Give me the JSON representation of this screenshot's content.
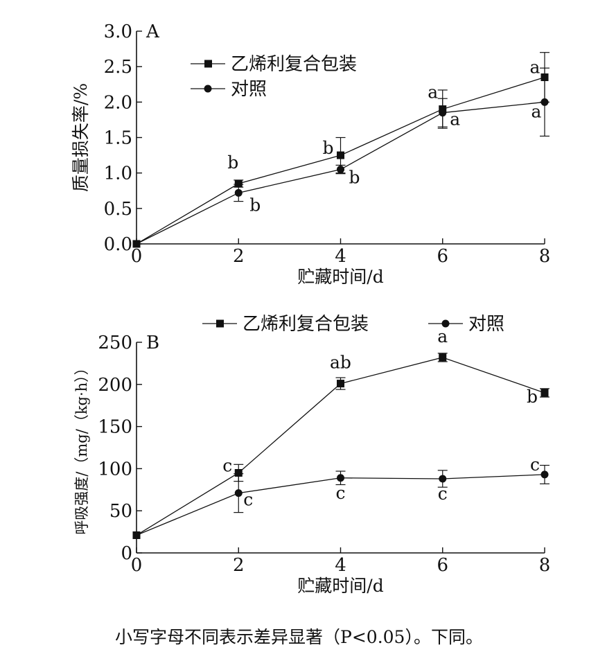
{
  "chart_data": [
    {
      "type": "line",
      "panel_label": "A",
      "xlabel": "贮藏时间/d",
      "ylabel": "质量损失率/%",
      "x": [
        0,
        2,
        4,
        6,
        8
      ],
      "xlim": [
        0,
        8
      ],
      "ylim": [
        0,
        3.0
      ],
      "yticks": [
        "0.0",
        "0.5",
        "1.0",
        "1.5",
        "2.0",
        "2.5",
        "3.0"
      ],
      "xticks": [
        "0",
        "2",
        "4",
        "6",
        "8"
      ],
      "legend_position": "top-left",
      "series": [
        {
          "name": "乙烯利复合包装",
          "marker": "square",
          "values": [
            0.0,
            0.85,
            1.25,
            1.9,
            2.35
          ],
          "errors": [
            0.0,
            0.05,
            0.25,
            0.27,
            0.35
          ],
          "letters": [
            "",
            "b",
            "b",
            "a",
            "a"
          ]
        },
        {
          "name": "对照",
          "marker": "circle",
          "values": [
            0.0,
            0.72,
            1.05,
            1.85,
            2.0
          ],
          "errors": [
            0.0,
            0.12,
            0.06,
            0.2,
            0.48
          ],
          "letters": [
            "",
            "b",
            "b",
            "a",
            "a"
          ]
        }
      ]
    },
    {
      "type": "line",
      "panel_label": "B",
      "xlabel": "贮藏时间/d",
      "ylabel": "呼吸强度/（mg/（kg·h））",
      "x": [
        0,
        2,
        4,
        6,
        8
      ],
      "xlim": [
        0,
        8
      ],
      "ylim": [
        0,
        250
      ],
      "yticks": [
        "0",
        "50",
        "100",
        "150",
        "200",
        "250"
      ],
      "xticks": [
        "0",
        "2",
        "4",
        "6",
        "8"
      ],
      "legend_position": "top",
      "series": [
        {
          "name": "乙烯利复合包装",
          "marker": "square",
          "values": [
            21,
            95,
            201,
            232,
            190
          ],
          "errors": [
            0,
            10,
            7,
            5,
            5
          ],
          "letters": [
            "",
            "c",
            "ab",
            "a",
            "b"
          ]
        },
        {
          "name": "对照",
          "marker": "circle",
          "values": [
            21,
            71,
            89,
            88,
            93
          ],
          "errors": [
            0,
            23,
            8,
            10,
            11
          ],
          "letters": [
            "",
            "c",
            "c",
            "c",
            "c"
          ]
        }
      ]
    }
  ],
  "caption": "小写字母不同表示差异显著（P<0.05）。下同。"
}
